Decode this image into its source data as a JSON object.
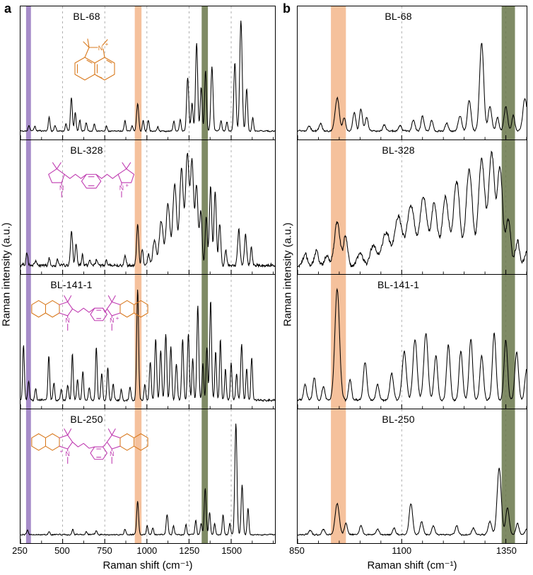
{
  "figure": {
    "panel_a_label": "a",
    "panel_b_label": "b"
  },
  "colors": {
    "spectrum": "#000000",
    "grid": "#9a9a9a",
    "purple_band": "#9678bf",
    "orange_band": "#f2b183",
    "green_band": "#68774a",
    "structure_orange": "#d97a1e",
    "structure_magenta": "#bf3ab0"
  },
  "molecules": {
    "n": "N",
    "plus": "+"
  },
  "axes": {
    "a": {
      "xlabel": "Raman shift (cm⁻¹)",
      "ylabel": "Raman intensity (a.u.)",
      "xlim": [
        250,
        1760
      ],
      "ticks": [
        250,
        500,
        750,
        1000,
        1250,
        1500
      ],
      "minor_step": 125,
      "grid": [
        500,
        750,
        1000,
        1250,
        1500
      ],
      "bands": [
        {
          "name": "purple",
          "from": 283,
          "to": 312,
          "opacity": 0.85
        },
        {
          "name": "orange",
          "from": 928,
          "to": 968,
          "opacity": 0.8
        },
        {
          "name": "green",
          "from": 1325,
          "to": 1362,
          "opacity": 0.85
        }
      ]
    },
    "b": {
      "xlabel": "Raman shift (cm⁻¹)",
      "ylabel": "Raman intensity (a.u.)",
      "xlim": [
        850,
        1400
      ],
      "ticks": [
        850,
        1100,
        1350
      ],
      "minor_step": 50,
      "grid": [
        1100,
        1350
      ],
      "bands": [
        {
          "name": "orange",
          "from": 930,
          "to": 966,
          "opacity": 0.8
        },
        {
          "name": "green",
          "from": 1340,
          "to": 1372,
          "opacity": 0.85
        }
      ]
    }
  },
  "chart_data": [
    {
      "id": "a-bl68",
      "type": "line",
      "panel": "a",
      "row": 0,
      "label": "BL-68",
      "x_units": "cm⁻¹",
      "seed": 1,
      "noise": 0.008,
      "peaks": [
        [
          300,
          0.05,
          7
        ],
        [
          335,
          0.04,
          7
        ],
        [
          420,
          0.13,
          7
        ],
        [
          455,
          0.05,
          7
        ],
        [
          520,
          0.06,
          7
        ],
        [
          552,
          0.3,
          8
        ],
        [
          575,
          0.17,
          7
        ],
        [
          602,
          0.1,
          7
        ],
        [
          640,
          0.08,
          7
        ],
        [
          688,
          0.07,
          7
        ],
        [
          760,
          0.05,
          7
        ],
        [
          870,
          0.09,
          7
        ],
        [
          912,
          0.05,
          7
        ],
        [
          945,
          0.25,
          9
        ],
        [
          978,
          0.1,
          7
        ],
        [
          1008,
          0.1,
          7
        ],
        [
          1065,
          0.04,
          7
        ],
        [
          1160,
          0.09,
          7
        ],
        [
          1198,
          0.11,
          7
        ],
        [
          1242,
          0.48,
          9
        ],
        [
          1268,
          0.25,
          8
        ],
        [
          1295,
          0.8,
          9
        ],
        [
          1322,
          0.4,
          8
        ],
        [
          1348,
          0.55,
          8
        ],
        [
          1386,
          0.58,
          9
        ],
        [
          1440,
          0.1,
          7
        ],
        [
          1475,
          0.08,
          7
        ],
        [
          1522,
          0.62,
          9
        ],
        [
          1558,
          1.0,
          10
        ],
        [
          1592,
          0.38,
          8
        ],
        [
          1628,
          0.12,
          7
        ]
      ]
    },
    {
      "id": "a-bl328",
      "type": "line",
      "panel": "a",
      "row": 1,
      "label": "BL-328",
      "x_units": "cm⁻¹",
      "seed": 2,
      "noise": 0.022,
      "peaks": [
        [
          288,
          0.12,
          8
        ],
        [
          340,
          0.05,
          7
        ],
        [
          420,
          0.07,
          7
        ],
        [
          470,
          0.05,
          7
        ],
        [
          553,
          0.3,
          9
        ],
        [
          580,
          0.2,
          8
        ],
        [
          618,
          0.1,
          7
        ],
        [
          660,
          0.06,
          7
        ],
        [
          700,
          0.05,
          7
        ],
        [
          760,
          0.04,
          7
        ],
        [
          870,
          0.09,
          9
        ],
        [
          945,
          0.37,
          9
        ],
        [
          972,
          0.16,
          8
        ],
        [
          1010,
          0.1,
          9
        ],
        [
          1045,
          0.22,
          14
        ],
        [
          1085,
          0.4,
          16
        ],
        [
          1125,
          0.55,
          16
        ],
        [
          1165,
          0.72,
          16
        ],
        [
          1205,
          0.88,
          16
        ],
        [
          1240,
          1.0,
          15
        ],
        [
          1268,
          0.92,
          13
        ],
        [
          1295,
          0.72,
          12
        ],
        [
          1320,
          0.5,
          10
        ],
        [
          1352,
          0.45,
          9
        ],
        [
          1378,
          0.72,
          10
        ],
        [
          1405,
          0.68,
          10
        ],
        [
          1432,
          0.38,
          9
        ],
        [
          1468,
          0.14,
          8
        ],
        [
          1545,
          0.32,
          10
        ],
        [
          1585,
          0.28,
          9
        ],
        [
          1620,
          0.18,
          8
        ]
      ]
    },
    {
      "id": "a-bl141",
      "type": "line",
      "panel": "a",
      "row": 2,
      "label": "BL-141-1",
      "x_units": "cm⁻¹",
      "seed": 3,
      "noise": 0.012,
      "peaks": [
        [
          268,
          0.5,
          7
        ],
        [
          298,
          0.18,
          7
        ],
        [
          340,
          0.1,
          7
        ],
        [
          418,
          0.4,
          7
        ],
        [
          448,
          0.16,
          7
        ],
        [
          492,
          0.1,
          7
        ],
        [
          530,
          0.14,
          7
        ],
        [
          558,
          0.42,
          7
        ],
        [
          588,
          0.18,
          7
        ],
        [
          620,
          0.26,
          7
        ],
        [
          658,
          0.12,
          7
        ],
        [
          700,
          0.48,
          7
        ],
        [
          732,
          0.24,
          7
        ],
        [
          768,
          0.3,
          7
        ],
        [
          800,
          0.14,
          7
        ],
        [
          848,
          0.1,
          7
        ],
        [
          900,
          0.12,
          7
        ],
        [
          945,
          1.0,
          8
        ],
        [
          988,
          0.14,
          7
        ],
        [
          1020,
          0.34,
          8
        ],
        [
          1052,
          0.55,
          8
        ],
        [
          1082,
          0.45,
          8
        ],
        [
          1112,
          0.6,
          8
        ],
        [
          1142,
          0.48,
          8
        ],
        [
          1175,
          0.33,
          8
        ],
        [
          1212,
          0.55,
          8
        ],
        [
          1246,
          0.6,
          8
        ],
        [
          1272,
          0.38,
          7
        ],
        [
          1302,
          0.85,
          8
        ],
        [
          1332,
          0.33,
          7
        ],
        [
          1356,
          0.48,
          7
        ],
        [
          1378,
          0.9,
          8
        ],
        [
          1408,
          0.44,
          7
        ],
        [
          1436,
          0.55,
          7
        ],
        [
          1466,
          0.28,
          7
        ],
        [
          1500,
          0.34,
          7
        ],
        [
          1532,
          0.24,
          7
        ],
        [
          1562,
          0.5,
          8
        ],
        [
          1592,
          0.28,
          7
        ],
        [
          1622,
          0.38,
          7
        ]
      ]
    },
    {
      "id": "a-bl250",
      "type": "line",
      "panel": "a",
      "row": 3,
      "label": "BL-250",
      "x_units": "cm⁻¹",
      "seed": 4,
      "noise": 0.007,
      "peaks": [
        [
          292,
          0.04,
          7
        ],
        [
          420,
          0.03,
          7
        ],
        [
          560,
          0.05,
          7
        ],
        [
          640,
          0.03,
          7
        ],
        [
          700,
          0.04,
          7
        ],
        [
          870,
          0.05,
          7
        ],
        [
          945,
          0.3,
          8
        ],
        [
          1002,
          0.08,
          7
        ],
        [
          1035,
          0.06,
          7
        ],
        [
          1120,
          0.18,
          8
        ],
        [
          1158,
          0.08,
          7
        ],
        [
          1232,
          0.09,
          7
        ],
        [
          1290,
          0.13,
          7
        ],
        [
          1322,
          0.1,
          7
        ],
        [
          1346,
          0.42,
          8
        ],
        [
          1372,
          0.2,
          7
        ],
        [
          1402,
          0.1,
          7
        ],
        [
          1452,
          0.18,
          7
        ],
        [
          1492,
          0.1,
          7
        ],
        [
          1528,
          1.0,
          9
        ],
        [
          1565,
          0.45,
          8
        ],
        [
          1600,
          0.24,
          7
        ]
      ]
    },
    {
      "id": "b-bl68",
      "type": "line",
      "panel": "b",
      "row": 0,
      "label": "BL-68",
      "x_units": "cm⁻¹",
      "seed": 5,
      "noise": 0.01,
      "peaks": [
        [
          878,
          0.05,
          5
        ],
        [
          905,
          0.07,
          5
        ],
        [
          945,
          0.3,
          7
        ],
        [
          962,
          0.12,
          5
        ],
        [
          986,
          0.17,
          5
        ],
        [
          1002,
          0.2,
          5
        ],
        [
          1016,
          0.12,
          5
        ],
        [
          1058,
          0.06,
          5
        ],
        [
          1096,
          0.05,
          5
        ],
        [
          1128,
          0.1,
          5
        ],
        [
          1150,
          0.14,
          5
        ],
        [
          1172,
          0.1,
          5
        ],
        [
          1208,
          0.07,
          5
        ],
        [
          1240,
          0.14,
          6
        ],
        [
          1262,
          0.28,
          6
        ],
        [
          1292,
          0.8,
          7
        ],
        [
          1312,
          0.22,
          6
        ],
        [
          1330,
          0.12,
          5
        ],
        [
          1350,
          0.22,
          6
        ],
        [
          1368,
          0.14,
          5
        ],
        [
          1396,
          0.3,
          7
        ]
      ]
    },
    {
      "id": "b-bl328",
      "type": "line",
      "panel": "b",
      "row": 1,
      "label": "BL-328",
      "x_units": "cm⁻¹",
      "seed": 6,
      "noise": 0.028,
      "peaks": [
        [
          868,
          0.1,
          7
        ],
        [
          895,
          0.13,
          7
        ],
        [
          920,
          0.1,
          7
        ],
        [
          945,
          0.4,
          9
        ],
        [
          965,
          0.26,
          7
        ],
        [
          1000,
          0.12,
          9
        ],
        [
          1032,
          0.18,
          11
        ],
        [
          1062,
          0.3,
          13
        ],
        [
          1092,
          0.44,
          13
        ],
        [
          1122,
          0.55,
          13
        ],
        [
          1152,
          0.62,
          12
        ],
        [
          1178,
          0.55,
          11
        ],
        [
          1205,
          0.62,
          11
        ],
        [
          1232,
          0.76,
          11
        ],
        [
          1262,
          0.86,
          11
        ],
        [
          1292,
          0.96,
          11
        ],
        [
          1316,
          1.0,
          10
        ],
        [
          1336,
          0.88,
          9
        ],
        [
          1356,
          0.42,
          8
        ],
        [
          1378,
          0.22,
          7
        ],
        [
          1400,
          0.12,
          7
        ]
      ]
    },
    {
      "id": "b-bl141",
      "type": "line",
      "panel": "b",
      "row": 2,
      "label": "BL-141-1",
      "x_units": "cm⁻¹",
      "seed": 7,
      "noise": 0.012,
      "peaks": [
        [
          868,
          0.14,
          5
        ],
        [
          890,
          0.2,
          5
        ],
        [
          912,
          0.12,
          5
        ],
        [
          945,
          1.0,
          8
        ],
        [
          976,
          0.18,
          5
        ],
        [
          1012,
          0.34,
          6
        ],
        [
          1042,
          0.14,
          5
        ],
        [
          1076,
          0.24,
          6
        ],
        [
          1106,
          0.44,
          7
        ],
        [
          1132,
          0.55,
          7
        ],
        [
          1158,
          0.6,
          7
        ],
        [
          1182,
          0.4,
          6
        ],
        [
          1212,
          0.5,
          6
        ],
        [
          1242,
          0.44,
          6
        ],
        [
          1266,
          0.55,
          6
        ],
        [
          1292,
          0.4,
          6
        ],
        [
          1322,
          0.6,
          6
        ],
        [
          1350,
          0.54,
          6
        ],
        [
          1376,
          0.44,
          6
        ],
        [
          1400,
          0.28,
          6
        ]
      ]
    },
    {
      "id": "b-bl250",
      "type": "line",
      "panel": "b",
      "row": 3,
      "label": "BL-250",
      "x_units": "cm⁻¹",
      "seed": 8,
      "noise": 0.008,
      "peaks": [
        [
          880,
          0.04,
          5
        ],
        [
          912,
          0.05,
          5
        ],
        [
          945,
          0.28,
          7
        ],
        [
          966,
          0.1,
          5
        ],
        [
          1002,
          0.08,
          5
        ],
        [
          1042,
          0.05,
          5
        ],
        [
          1082,
          0.06,
          5
        ],
        [
          1122,
          0.28,
          6
        ],
        [
          1148,
          0.12,
          5
        ],
        [
          1176,
          0.08,
          5
        ],
        [
          1232,
          0.08,
          5
        ],
        [
          1272,
          0.06,
          5
        ],
        [
          1312,
          0.12,
          6
        ],
        [
          1334,
          0.6,
          7
        ],
        [
          1354,
          0.24,
          6
        ],
        [
          1378,
          0.1,
          5
        ],
        [
          1400,
          0.05,
          5
        ]
      ]
    }
  ]
}
